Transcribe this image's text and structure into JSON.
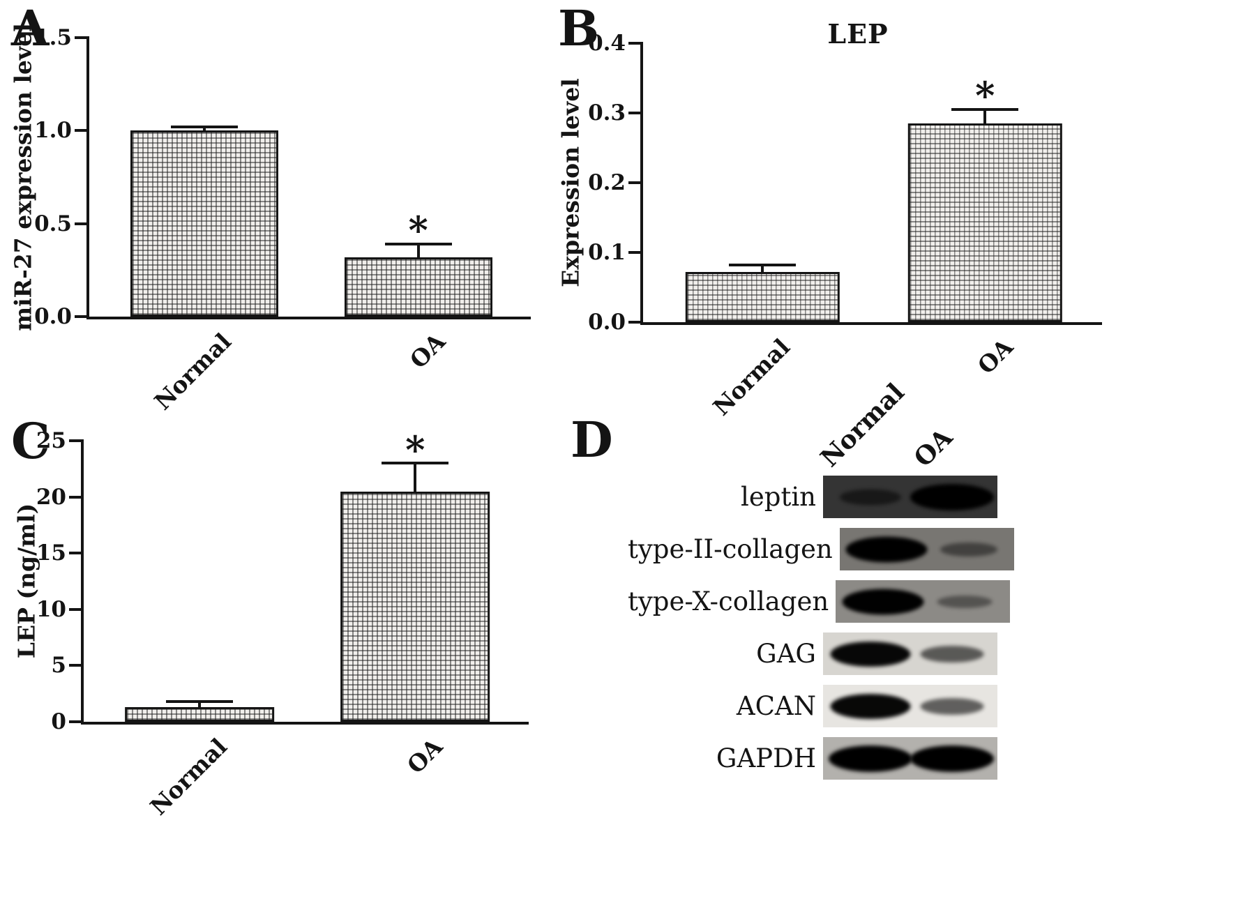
{
  "panels": [
    {
      "letter": "A"
    },
    {
      "letter": "B"
    },
    {
      "letter": "C"
    },
    {
      "letter": "D"
    }
  ],
  "chart_data": [
    {
      "id": "A",
      "type": "bar",
      "title": "",
      "ylabel": "miR-27 expression level",
      "xlabel": "",
      "categories": [
        "Normal",
        "OA"
      ],
      "values": [
        1.0,
        0.32
      ],
      "errors": [
        0.02,
        0.07
      ],
      "significance": [
        "",
        "*"
      ],
      "ylim": [
        0,
        1.5
      ],
      "yticks": [
        0,
        0.5,
        1.0,
        1.5
      ],
      "ytick_labels": [
        "0.0",
        "0.5",
        "1.0",
        "1.5"
      ],
      "bar_fill": "#f1efec",
      "hatch": "checker-grid",
      "grid": false,
      "legend": false
    },
    {
      "id": "B",
      "type": "bar",
      "title": "LEP",
      "ylabel": "Expression level",
      "xlabel": "",
      "categories": [
        "Normal",
        "OA"
      ],
      "values": [
        0.072,
        0.285
      ],
      "errors": [
        0.01,
        0.02
      ],
      "significance": [
        "",
        "*"
      ],
      "ylim": [
        0,
        0.4
      ],
      "yticks": [
        0,
        0.1,
        0.2,
        0.3,
        0.4
      ],
      "ytick_labels": [
        "0.0",
        "0.1",
        "0.2",
        "0.3",
        "0.4"
      ],
      "bar_fill": "#f1efec",
      "hatch": "checker-grid",
      "grid": false,
      "legend": false
    },
    {
      "id": "C",
      "type": "bar",
      "title": "",
      "ylabel": "LEP (ng/ml)",
      "xlabel": "",
      "categories": [
        "Normal",
        "OA"
      ],
      "values": [
        1.3,
        20.5
      ],
      "errors": [
        0.5,
        2.5
      ],
      "significance": [
        "",
        "*"
      ],
      "ylim": [
        0,
        25
      ],
      "yticks": [
        0,
        5,
        10,
        15,
        20,
        25
      ],
      "ytick_labels": [
        "0",
        "5",
        "10",
        "15",
        "20",
        "25"
      ],
      "bar_fill": "#f1efec",
      "hatch": "checker-grid",
      "grid": false,
      "legend": false
    }
  ],
  "blot": {
    "panel": "D",
    "col_headers": [
      "Normal",
      "OA"
    ],
    "rows": [
      {
        "label": "leptin",
        "bg": "#343434",
        "bands": [
          0.45,
          1.0
        ]
      },
      {
        "label": "type-II-collagen",
        "bg": "#787672",
        "bands": [
          0.95,
          0.35
        ]
      },
      {
        "label": "type-X-collagen",
        "bg": "#8c8a86",
        "bands": [
          0.95,
          0.3
        ]
      },
      {
        "label": "GAG",
        "bg": "#d7d5d0",
        "bands": [
          0.92,
          0.5
        ]
      },
      {
        "label": "ACAN",
        "bg": "#e7e5e1",
        "bands": [
          0.92,
          0.5
        ]
      },
      {
        "label": "GAPDH",
        "bg": "#b3b1ad",
        "bands": [
          1.0,
          1.0
        ]
      }
    ]
  },
  "colors": {
    "axis": "#141414",
    "bar_fill": "#f1efec",
    "hatch": "#1e1e1e",
    "background": "#ffffff"
  }
}
